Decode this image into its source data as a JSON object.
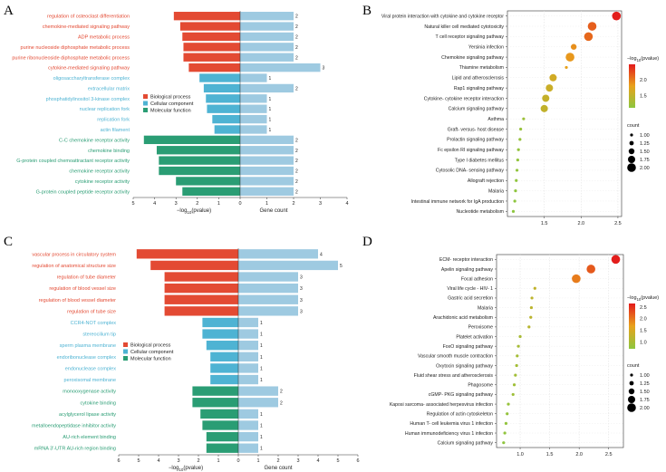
{
  "chart_data": [
    {
      "panel": "A",
      "type": "bar",
      "orientation": "horizontal-butterfly",
      "colors": {
        "Biological process": "#e34a33",
        "Cellular component": "#4eb3d3",
        "Molecular function": "#2a9d74",
        "gene_count": "#9ecae1"
      },
      "terms": [
        {
          "name": "regulation of osteoclast differentiation",
          "category": "Biological process",
          "neg_log10_p": 3.1,
          "count": 2
        },
        {
          "name": "chemokine-mediated signaling pathway",
          "category": "Biological process",
          "neg_log10_p": 2.8,
          "count": 2
        },
        {
          "name": "ADP metabolic process",
          "category": "Biological process",
          "neg_log10_p": 2.7,
          "count": 2
        },
        {
          "name": "purine nucleoside diphosphate metabolic process",
          "category": "Biological process",
          "neg_log10_p": 2.65,
          "count": 2
        },
        {
          "name": "purine ribonucleoside diphosphate metabolic process",
          "category": "Biological process",
          "neg_log10_p": 2.65,
          "count": 2
        },
        {
          "name": "cytokine-mediated signaling pathway",
          "category": "Biological process",
          "neg_log10_p": 2.4,
          "count": 3
        },
        {
          "name": "oligosaccharyltransferase complex",
          "category": "Cellular component",
          "neg_log10_p": 1.9,
          "count": 1
        },
        {
          "name": "extracellular matrix",
          "category": "Cellular component",
          "neg_log10_p": 1.7,
          "count": 2
        },
        {
          "name": "phosphatidylinositol 3-kinase complex",
          "category": "Cellular component",
          "neg_log10_p": 1.6,
          "count": 1
        },
        {
          "name": "nuclear replication fork",
          "category": "Cellular component",
          "neg_log10_p": 1.55,
          "count": 1
        },
        {
          "name": "replication fork",
          "category": "Cellular component",
          "neg_log10_p": 1.3,
          "count": 1
        },
        {
          "name": "actin filament",
          "category": "Cellular component",
          "neg_log10_p": 1.2,
          "count": 1
        },
        {
          "name": "C-C chemokine receptor activity",
          "category": "Molecular function",
          "neg_log10_p": 4.5,
          "count": 2
        },
        {
          "name": "chemokine binding",
          "category": "Molecular function",
          "neg_log10_p": 3.9,
          "count": 2
        },
        {
          "name": "G-protein coupled chemoattractant receptor activity",
          "category": "Molecular function",
          "neg_log10_p": 3.8,
          "count": 2
        },
        {
          "name": "chemokine receptor activity",
          "category": "Molecular function",
          "neg_log10_p": 3.8,
          "count": 2
        },
        {
          "name": "cytokine receptor activity",
          "category": "Molecular function",
          "neg_log10_p": 3.0,
          "count": 2
        },
        {
          "name": "G-protein coupled peptide receptor activity",
          "category": "Molecular function",
          "neg_log10_p": 2.7,
          "count": 2
        }
      ],
      "left_axis": {
        "label_base": "−log",
        "label_sub": "10",
        "label_tail": "(pvalue)",
        "ticks": [
          "5",
          "4",
          "3",
          "2",
          "1",
          "0"
        ],
        "max": 5
      },
      "right_axis": {
        "label": "Gene count",
        "ticks": [
          "0",
          "1",
          "2",
          "3",
          "4"
        ],
        "max": 4
      },
      "legend": [
        "Biological process",
        "Cellular component",
        "Molecular function"
      ],
      "legend_position": "center-left"
    },
    {
      "panel": "B",
      "type": "scatter",
      "subtype": "bubble",
      "pathways": [
        {
          "name": "Viral protein interaction with cytokine and cytokine receptor",
          "x": 2.48,
          "count": 2
        },
        {
          "name": "Natural killer cell mediated cytotoxicity",
          "x": 2.15,
          "count": 2
        },
        {
          "name": "T cell receptor signaling pathway",
          "x": 2.1,
          "count": 2
        },
        {
          "name": "Yersinia infection",
          "x": 1.9,
          "count": 1.5
        },
        {
          "name": "Chemokine signaling pathway",
          "x": 1.85,
          "count": 2
        },
        {
          "name": "Thiamine metabolism",
          "x": 1.8,
          "count": 1
        },
        {
          "name": "Lipid and atherosclerosis",
          "x": 1.62,
          "count": 1.75
        },
        {
          "name": "Rap1 signaling pathway",
          "x": 1.57,
          "count": 1.75
        },
        {
          "name": "Cytokine- cytokine receptor interaction",
          "x": 1.52,
          "count": 1.75
        },
        {
          "name": "Calcium signaling pathway",
          "x": 1.5,
          "count": 1.75
        },
        {
          "name": "Asthma",
          "x": 1.22,
          "count": 1
        },
        {
          "name": "Graft- versus- host disease",
          "x": 1.18,
          "count": 1
        },
        {
          "name": "Prolactin signaling pathway",
          "x": 1.17,
          "count": 1
        },
        {
          "name": "Fc epsilon RI signaling pathway",
          "x": 1.15,
          "count": 1
        },
        {
          "name": "Type I diabetes mellitus",
          "x": 1.14,
          "count": 1
        },
        {
          "name": "Cytosolic DNA- sensing pathway",
          "x": 1.13,
          "count": 1
        },
        {
          "name": "Allograft rejection",
          "x": 1.12,
          "count": 1
        },
        {
          "name": "Malaria",
          "x": 1.11,
          "count": 1
        },
        {
          "name": "Intestinal immune network for IgA production",
          "x": 1.1,
          "count": 1
        },
        {
          "name": "Nucleotide metabolism",
          "x": 1.08,
          "count": 1
        }
      ],
      "xlim": [
        1.0,
        2.55
      ],
      "x_ticks": [
        "1.5",
        "2.0",
        "2.5"
      ],
      "color_legend": {
        "title_base": "−log",
        "title_sub": "10",
        "title_tail": "(pvalue)",
        "ticks": [
          "2.0",
          "1.5"
        ],
        "min": 1.1,
        "max": 2.5
      },
      "size_legend": {
        "title": "count",
        "values": [
          "1.00",
          "1.25",
          "1.50",
          "1.75",
          "2.00"
        ]
      }
    },
    {
      "panel": "C",
      "type": "bar",
      "orientation": "horizontal-butterfly",
      "terms": [
        {
          "name": "vascular process in circulatory system",
          "category": "Biological process",
          "neg_log10_p": 5.1,
          "count": 4
        },
        {
          "name": "regulation of anatomical structure size",
          "category": "Biological process",
          "neg_log10_p": 4.4,
          "count": 5
        },
        {
          "name": "regulation of tube diameter",
          "category": "Biological process",
          "neg_log10_p": 3.7,
          "count": 3
        },
        {
          "name": "regulation of blood vessel size",
          "category": "Biological process",
          "neg_log10_p": 3.7,
          "count": 3
        },
        {
          "name": "regulation of blood vessel diameter",
          "category": "Biological process",
          "neg_log10_p": 3.7,
          "count": 3
        },
        {
          "name": "regulation of tube size",
          "category": "Biological process",
          "neg_log10_p": 3.7,
          "count": 3
        },
        {
          "name": "CCR4-NOT complex",
          "category": "Cellular component",
          "neg_log10_p": 1.8,
          "count": 1
        },
        {
          "name": "stereocilium tip",
          "category": "Cellular component",
          "neg_log10_p": 1.8,
          "count": 1
        },
        {
          "name": "sperm plasma membrane",
          "category": "Cellular component",
          "neg_log10_p": 1.6,
          "count": 1
        },
        {
          "name": "endoribonuclease complex",
          "category": "Cellular component",
          "neg_log10_p": 1.4,
          "count": 1
        },
        {
          "name": "endonuclease complex",
          "category": "Cellular component",
          "neg_log10_p": 1.4,
          "count": 1
        },
        {
          "name": "peroxisomal membrane",
          "category": "Cellular component",
          "neg_log10_p": 1.4,
          "count": 1
        },
        {
          "name": "monooxygenase activity",
          "category": "Molecular function",
          "neg_log10_p": 2.3,
          "count": 2
        },
        {
          "name": "cytokine binding",
          "category": "Molecular function",
          "neg_log10_p": 2.3,
          "count": 2
        },
        {
          "name": "acylglycerol lipase activity",
          "category": "Molecular function",
          "neg_log10_p": 1.9,
          "count": 1
        },
        {
          "name": "metalloendopeptidase inhibitor activity",
          "category": "Molecular function",
          "neg_log10_p": 1.8,
          "count": 1
        },
        {
          "name": "AU-rich element binding",
          "category": "Molecular function",
          "neg_log10_p": 1.6,
          "count": 1
        },
        {
          "name": "mRNA 3'-UTR AU-rich region binding",
          "category": "Molecular function",
          "neg_log10_p": 1.6,
          "count": 1
        }
      ],
      "left_axis": {
        "label_base": "−log",
        "label_sub": "10",
        "label_tail": "(pvalue)",
        "ticks": [
          "6",
          "5",
          "4",
          "3",
          "2",
          "1",
          "0"
        ],
        "max": 6
      },
      "right_axis": {
        "label": "Gene count",
        "ticks": [
          "0",
          "1",
          "2",
          "3",
          "4",
          "5",
          "6"
        ],
        "max": 6
      },
      "legend": [
        "Biological process",
        "Cellular component",
        "Molecular function"
      ],
      "legend_position": "center-left"
    },
    {
      "panel": "D",
      "type": "scatter",
      "subtype": "bubble",
      "pathways": [
        {
          "name": "ECM- receptor interaction",
          "x": 2.62,
          "count": 2
        },
        {
          "name": "Apelin signaling pathway",
          "x": 2.2,
          "count": 2
        },
        {
          "name": "Focal adhesion",
          "x": 1.95,
          "count": 2
        },
        {
          "name": "Viral life cycle - HIV- 1",
          "x": 1.25,
          "count": 1
        },
        {
          "name": "Gastric acid secretion",
          "x": 1.2,
          "count": 1
        },
        {
          "name": "Malaria",
          "x": 1.19,
          "count": 1
        },
        {
          "name": "Arachidonic acid metabolism",
          "x": 1.18,
          "count": 1
        },
        {
          "name": "Peroxisome",
          "x": 1.15,
          "count": 1
        },
        {
          "name": "Platelet activation",
          "x": 1.0,
          "count": 1
        },
        {
          "name": "FoxO signaling pathway",
          "x": 0.97,
          "count": 1
        },
        {
          "name": "Vascular smooth muscle contraction",
          "x": 0.95,
          "count": 1
        },
        {
          "name": "Oxytocin signaling pathway",
          "x": 0.94,
          "count": 1
        },
        {
          "name": "Fluid shear stress and atherosclerosis",
          "x": 0.92,
          "count": 1
        },
        {
          "name": "Phagosome",
          "x": 0.9,
          "count": 1
        },
        {
          "name": "cGMP- PKG signaling pathway",
          "x": 0.88,
          "count": 1
        },
        {
          "name": "Kaposi sarcoma- associated herpesvirus infection",
          "x": 0.8,
          "count": 1
        },
        {
          "name": "Regulation of actin cytoskeleton",
          "x": 0.78,
          "count": 1
        },
        {
          "name": "Human T- cell leukemia virus 1 infection",
          "x": 0.76,
          "count": 1
        },
        {
          "name": "Human immunodeficiency virus 1 infection",
          "x": 0.74,
          "count": 1
        },
        {
          "name": "Calcium signaling pathway",
          "x": 0.72,
          "count": 1
        }
      ],
      "xlim": [
        0.6,
        2.75
      ],
      "x_ticks": [
        "1.0",
        "1.5",
        "2.0",
        "2.5"
      ],
      "color_legend": {
        "title_base": "−log",
        "title_sub": "10",
        "title_tail": "(pvalue)",
        "ticks": [
          "2.5",
          "2.0",
          "1.5",
          "1.0"
        ],
        "min": 0.7,
        "max": 2.65
      },
      "size_legend": {
        "title": "count",
        "values": [
          "1.00",
          "1.25",
          "1.50",
          "1.75",
          "2.00"
        ]
      }
    }
  ]
}
